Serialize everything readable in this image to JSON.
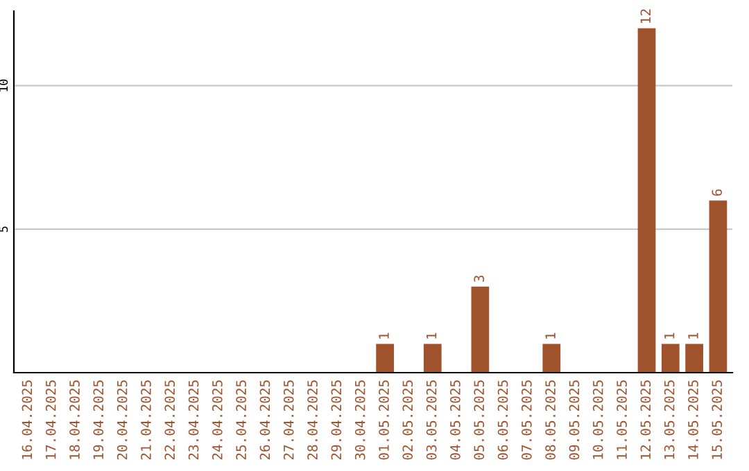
{
  "chart_data": {
    "type": "bar",
    "categories": [
      "16.04.2025",
      "17.04.2025",
      "18.04.2025",
      "19.04.2025",
      "20.04.2025",
      "21.04.2025",
      "22.04.2025",
      "23.04.2025",
      "24.04.2025",
      "25.04.2025",
      "26.04.2025",
      "27.04.2025",
      "28.04.2025",
      "29.04.2025",
      "30.04.2025",
      "01.05.2025",
      "02.05.2025",
      "03.05.2025",
      "04.05.2025",
      "05.05.2025",
      "06.05.2025",
      "07.05.2025",
      "08.05.2025",
      "09.05.2025",
      "10.05.2025",
      "11.05.2025",
      "12.05.2025",
      "13.05.2025",
      "14.05.2025",
      "15.05.2025"
    ],
    "values": [
      0,
      0,
      0,
      0,
      0,
      0,
      0,
      0,
      0,
      0,
      0,
      0,
      0,
      0,
      0,
      1,
      0,
      1,
      0,
      3,
      0,
      0,
      1,
      0,
      0,
      0,
      12,
      1,
      1,
      6
    ],
    "value_labels": [
      null,
      null,
      null,
      null,
      null,
      null,
      null,
      null,
      null,
      null,
      null,
      null,
      null,
      null,
      null,
      "1",
      null,
      "1",
      null,
      "3",
      null,
      null,
      "1",
      null,
      null,
      null,
      "12",
      "1",
      "1",
      "6"
    ],
    "color": "#a0522d",
    "ylim": [
      0,
      12.6
    ],
    "yticks": [
      5,
      10
    ],
    "grid": "y"
  }
}
